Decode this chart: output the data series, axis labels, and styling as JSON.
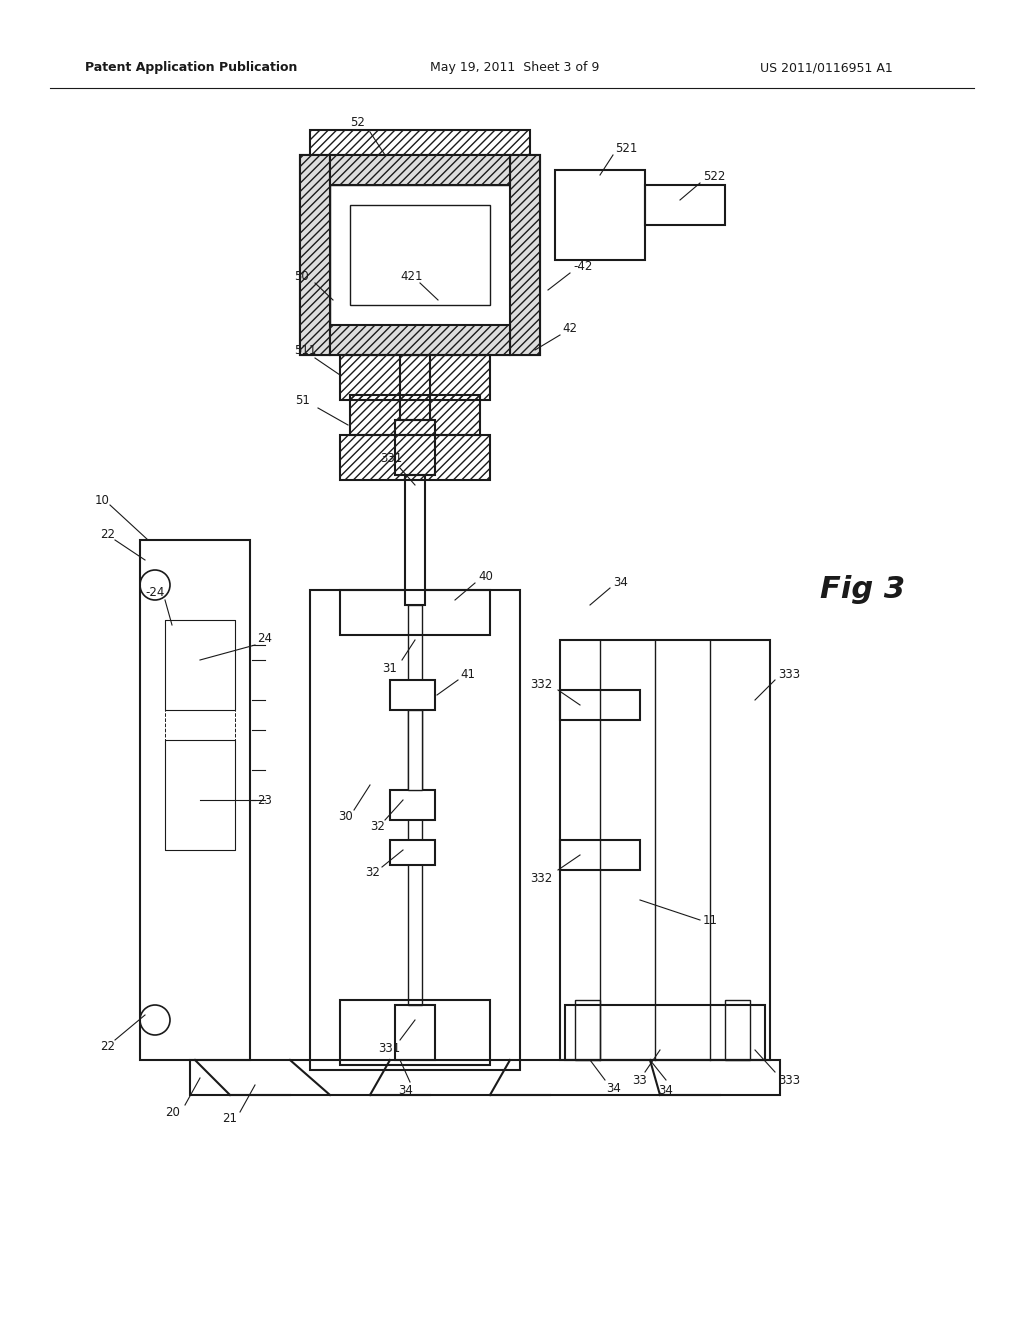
{
  "title_left": "Patent Application Publication",
  "title_mid": "May 19, 2011  Sheet 3 of 9",
  "title_right": "US 2011/0116951 A1",
  "fig_label": "Fig 3",
  "background": "#ffffff",
  "line_color": "#1a1a1a",
  "hatch_color": "#1a1a1a"
}
